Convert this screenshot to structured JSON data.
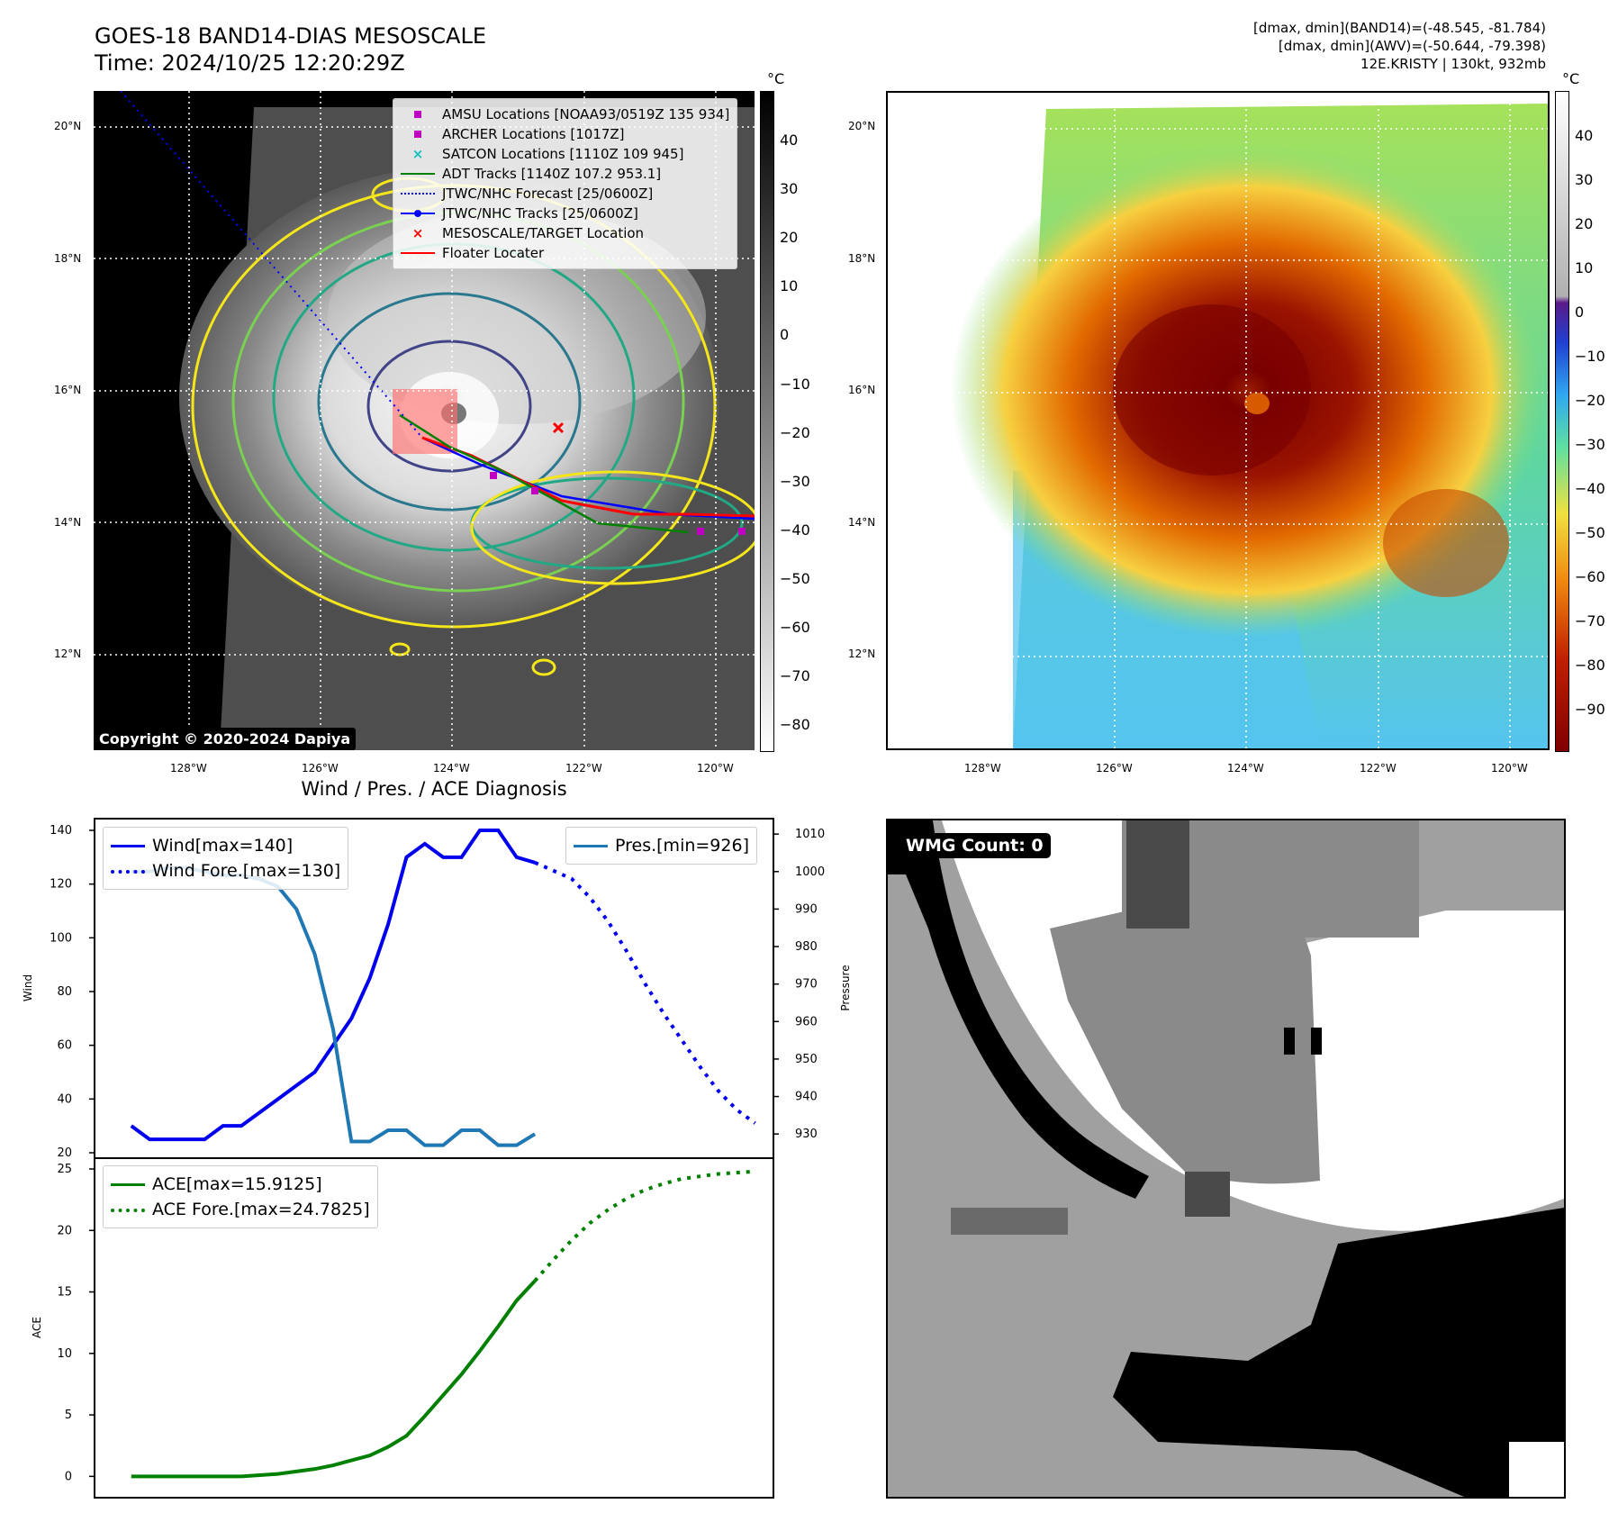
{
  "header": {
    "title_line1": "GOES-18 BAND14-DIAS MESOSCALE",
    "title_line2": "Time: 2024/10/25 12:20:29Z",
    "stats_line1": "[dmax, dmin](BAND14)=(-48.545, -81.784)",
    "stats_line2": "[dmax, dmin](AWV)=(-50.644, -79.398)",
    "stats_line3": "12E.KRISTY | 130kt, 932mb"
  },
  "map_ticks": {
    "lat": [
      "20°N",
      "18°N",
      "16°N",
      "14°N",
      "12°N"
    ],
    "lon": [
      "128°W",
      "126°W",
      "124°W",
      "122°W",
      "120°W"
    ]
  },
  "ir_panel": {
    "colorbar_unit": "°C",
    "colorbar_ticks": [
      "40",
      "30",
      "20",
      "10",
      "0",
      "−10",
      "−20",
      "−30",
      "−40",
      "−50",
      "−60",
      "−70",
      "−80"
    ],
    "copyright": "Copyright © 2020-2024 Dapiya",
    "legend": [
      {
        "label": "AMSU Locations [NOAA93/0519Z 135 934]",
        "symbol": "square",
        "color": "#c000c0"
      },
      {
        "label": "ARCHER Locations [1017Z]",
        "symbol": "square",
        "color": "#c000c0"
      },
      {
        "label": "SATCON Locations [1110Z 109 945]",
        "symbol": "x",
        "color": "#10c0c0"
      },
      {
        "label": "ADT Tracks [1140Z 107.2 953.1]",
        "symbol": "line",
        "color": "#008000"
      },
      {
        "label": "JTWC/NHC Forecast [25/0600Z]",
        "symbol": "dotted",
        "color": "#0000ff"
      },
      {
        "label": "JTWC/NHC Tracks [25/0600Z]",
        "symbol": "line-dot",
        "color": "#0000ff"
      },
      {
        "label": "MESOSCALE/TARGET Location",
        "symbol": "x",
        "color": "#ff0000"
      },
      {
        "label": "Floater Locater",
        "symbol": "line",
        "color": "#ff0000"
      }
    ]
  },
  "awv_panel": {
    "colorbar_unit": "°C",
    "colorbar_ticks": [
      "40",
      "30",
      "20",
      "10",
      "0",
      "−10",
      "−20",
      "−30",
      "−40",
      "−50",
      "−60",
      "−70",
      "−80",
      "−90"
    ]
  },
  "wmg_panel": {
    "label": "WMG Count: 0"
  },
  "chart_data": [
    {
      "type": "line",
      "title": "Wind / Pres. / ACE Diagnosis",
      "ylabel": "Wind",
      "y2label": "Pressure",
      "ylim": [
        20,
        140
      ],
      "y2lim": [
        926,
        1010
      ],
      "yticks": [
        "140",
        "120",
        "100",
        "80",
        "60",
        "40",
        "20"
      ],
      "y2ticks": [
        "1010",
        "1000",
        "990",
        "980",
        "970",
        "960",
        "950",
        "940",
        "930"
      ],
      "series": [
        {
          "name": "Wind[max=140]",
          "color": "#0000ee",
          "style": "solid",
          "x": [
            0,
            1,
            2,
            3,
            4,
            5,
            6,
            7,
            8,
            9,
            10,
            11,
            12,
            13,
            14,
            15,
            16,
            17,
            18,
            19,
            20,
            21,
            22
          ],
          "values": [
            30,
            25,
            25,
            25,
            25,
            30,
            30,
            35,
            40,
            45,
            50,
            60,
            70,
            85,
            105,
            130,
            135,
            130,
            130,
            140,
            140,
            130,
            128
          ]
        },
        {
          "name": "Wind Fore.[max=130]",
          "color": "#0000ee",
          "style": "dotted",
          "x": [
            22,
            23,
            24,
            25,
            26,
            27,
            28,
            29,
            30,
            31,
            32,
            33,
            34
          ],
          "values": [
            128,
            125,
            122,
            115,
            106,
            95,
            83,
            72,
            62,
            52,
            43,
            36,
            31
          ]
        },
        {
          "name": "Pres.[min=926]",
          "color": "#1f77b4",
          "style": "solid",
          "axis": "right",
          "x": [
            0,
            1,
            2,
            3,
            4,
            5,
            6,
            7,
            8,
            9,
            10,
            11,
            12,
            13,
            14,
            15,
            16,
            17,
            18,
            19,
            20,
            21,
            22
          ],
          "values": [
            1000,
            1000,
            1001,
            1001,
            1000,
            999,
            999,
            998,
            996,
            990,
            978,
            958,
            928,
            928,
            931,
            931,
            927,
            927,
            931,
            931,
            927,
            927,
            930
          ]
        }
      ]
    },
    {
      "type": "line",
      "ylabel": "ACE",
      "ylim": [
        -1,
        25
      ],
      "yticks": [
        "25",
        "20",
        "15",
        "10",
        "5",
        "0"
      ],
      "series": [
        {
          "name": "ACE[max=15.9125]",
          "color": "#008000",
          "style": "solid",
          "x": [
            0,
            1,
            2,
            3,
            4,
            5,
            6,
            7,
            8,
            9,
            10,
            11,
            12,
            13,
            14,
            15,
            16,
            17,
            18,
            19,
            20,
            21,
            22
          ],
          "values": [
            0,
            0,
            0,
            0,
            0,
            0,
            0,
            0.1,
            0.2,
            0.4,
            0.6,
            0.9,
            1.3,
            1.7,
            2.4,
            3.3,
            4.9,
            6.6,
            8.3,
            10.2,
            12.2,
            14.3,
            15.9
          ]
        },
        {
          "name": "ACE Fore.[max=24.7825]",
          "color": "#008000",
          "style": "dotted",
          "x": [
            22,
            23,
            24,
            25,
            26,
            27,
            28,
            29,
            30,
            31,
            32,
            33,
            34
          ],
          "values": [
            15.9,
            17.6,
            19.2,
            20.6,
            21.7,
            22.6,
            23.3,
            23.8,
            24.2,
            24.4,
            24.6,
            24.7,
            24.8
          ]
        }
      ]
    }
  ]
}
